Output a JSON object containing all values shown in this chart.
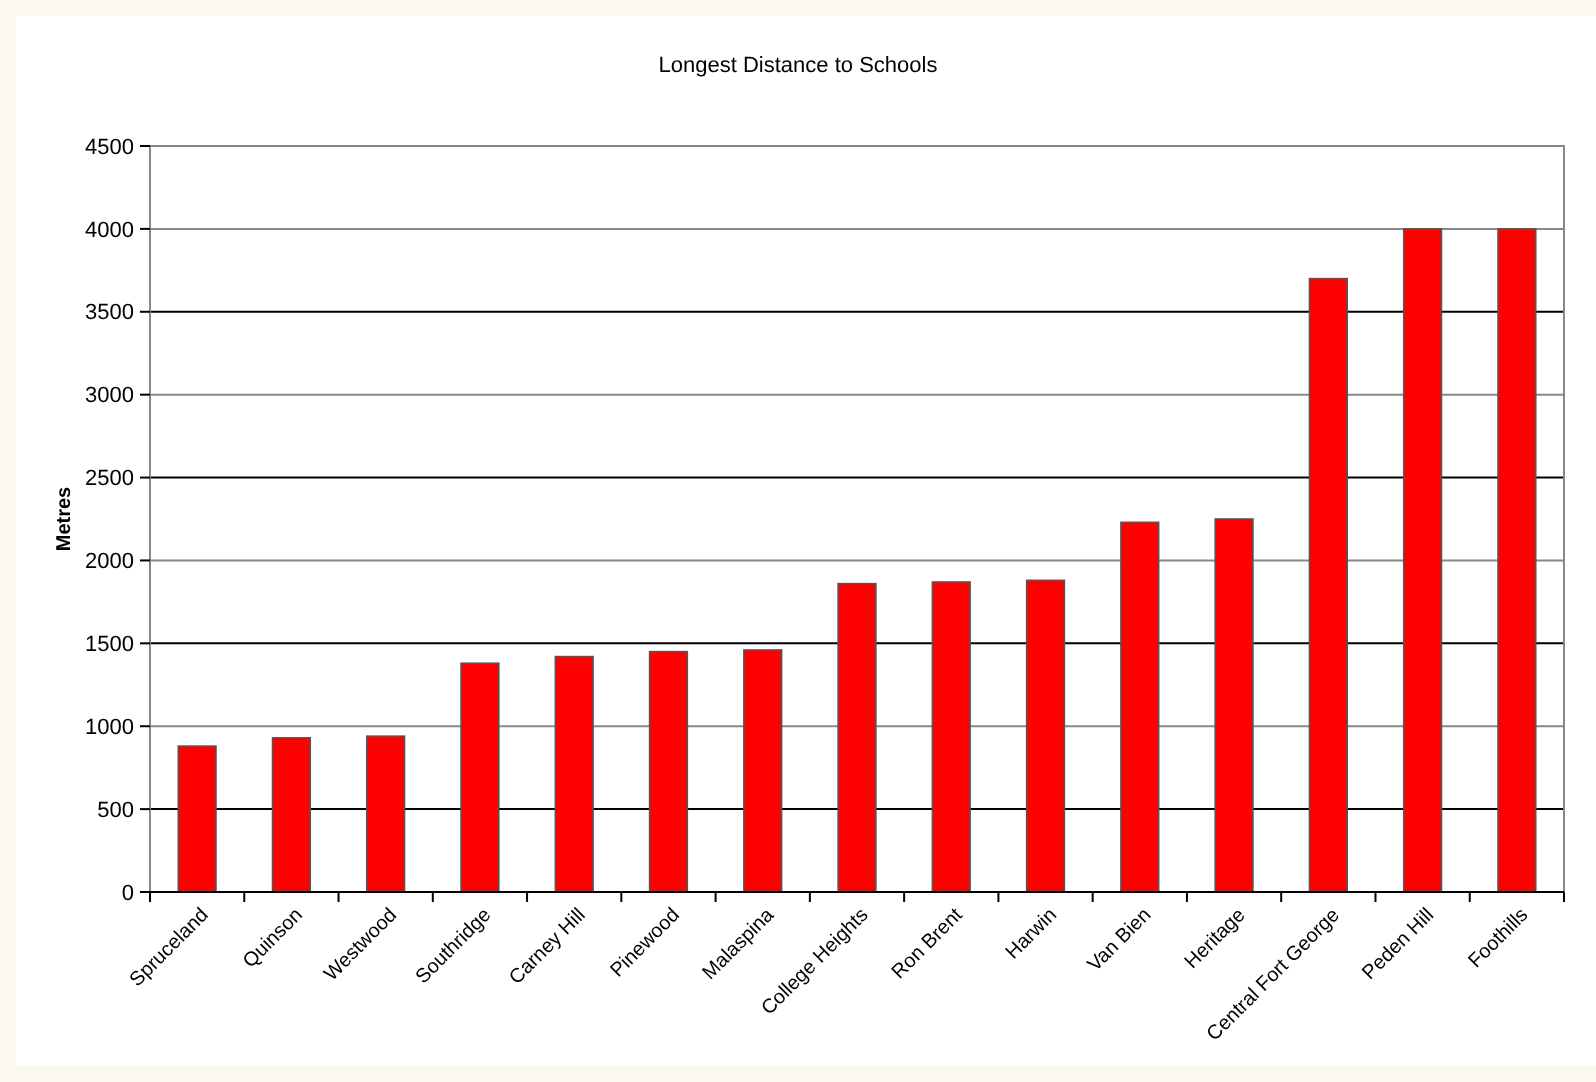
{
  "chart_data": {
    "type": "bar",
    "title": "Longest Distance to Schools",
    "ylabel": "Metres",
    "categories": [
      "Spruceland",
      "Quinson",
      "Westwood",
      "Southridge",
      "Carney Hill",
      "Pinewood",
      "Malaspina",
      "College Heights",
      "Ron Brent",
      "Harwin",
      "Van Bien",
      "Heritage",
      "Central Fort George",
      "Peden Hill",
      "Foothills"
    ],
    "values": [
      880,
      930,
      940,
      1380,
      1420,
      1450,
      1460,
      1860,
      1870,
      1880,
      2230,
      2250,
      3700,
      4000,
      4000
    ],
    "color": "#ff0000",
    "ylim": [
      0,
      4500
    ],
    "yticks": [
      0,
      500,
      1000,
      1500,
      2000,
      2500,
      3000,
      3500,
      4000,
      4500
    ],
    "grid": "y"
  }
}
